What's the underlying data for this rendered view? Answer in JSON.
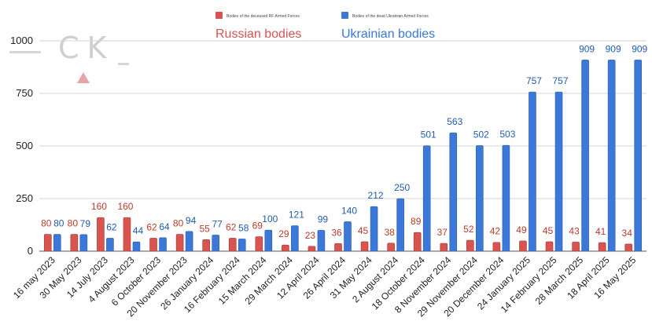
{
  "chart_data": {
    "type": "bar",
    "title": "",
    "xlabel": "",
    "ylabel": "",
    "ylim": [
      0,
      1000
    ],
    "yticks": [
      0,
      250,
      500,
      750,
      1000
    ],
    "grid": true,
    "legend_position": "top-center",
    "categories": [
      "16 may 2023",
      "30 May 2023",
      "14 July 2023",
      "4 August 2023",
      "6 October 2023",
      "20 November 2023",
      "26 January 2024",
      "16 February 2024",
      "15 March 2024",
      "29 March 2024",
      "12 April 2024",
      "26 April 2024",
      "31 May 2024",
      "2 August 2024",
      "18 October 2024",
      "8 November 2024",
      "29 November 2024",
      "20 December 2024",
      "24 January 2025",
      "14 February 2025",
      "28 March 2025",
      "18 April 2025",
      "16 May 2025"
    ],
    "series": [
      {
        "name": "Bodies of the deceased RF Armed Forces",
        "annotation": "Russian bodies",
        "color": "#d9534f",
        "label_color": "#c0392b",
        "values": [
          80,
          80,
          160,
          160,
          62,
          80,
          55,
          62,
          69,
          29,
          23,
          36,
          45,
          38,
          89,
          37,
          52,
          42,
          49,
          45,
          43,
          41,
          34
        ],
        "labels": [
          "80",
          "80",
          "160",
          "160",
          "62",
          "80",
          "55",
          "62",
          "69",
          "29",
          "23",
          "36",
          "45",
          "38",
          "89",
          "37",
          "52",
          "42",
          "49",
          "45",
          "43",
          "41",
          "34"
        ]
      },
      {
        "name": "Bodies of the dead Ukrainian Armed Forces",
        "annotation": "Ukrainian bodies",
        "color": "#3b78d8",
        "label_color": "#1f5bb5",
        "values": [
          80,
          79,
          62,
          44,
          64,
          94,
          77,
          58,
          100,
          121,
          99,
          140,
          212,
          250,
          501,
          563,
          502,
          503,
          757,
          757,
          909,
          909,
          909
        ],
        "labels": [
          "80",
          "79",
          "62",
          "44",
          "64",
          "94",
          "77",
          "58",
          "100",
          "121",
          "99",
          "140",
          "212",
          "250",
          "501",
          "563",
          "502",
          "503",
          "757",
          "757",
          "909",
          "909",
          "909"
        ]
      }
    ]
  },
  "watermark": {
    "text": "CK",
    "color": "#cfcfcf",
    "accent": "#e8a4a4"
  }
}
